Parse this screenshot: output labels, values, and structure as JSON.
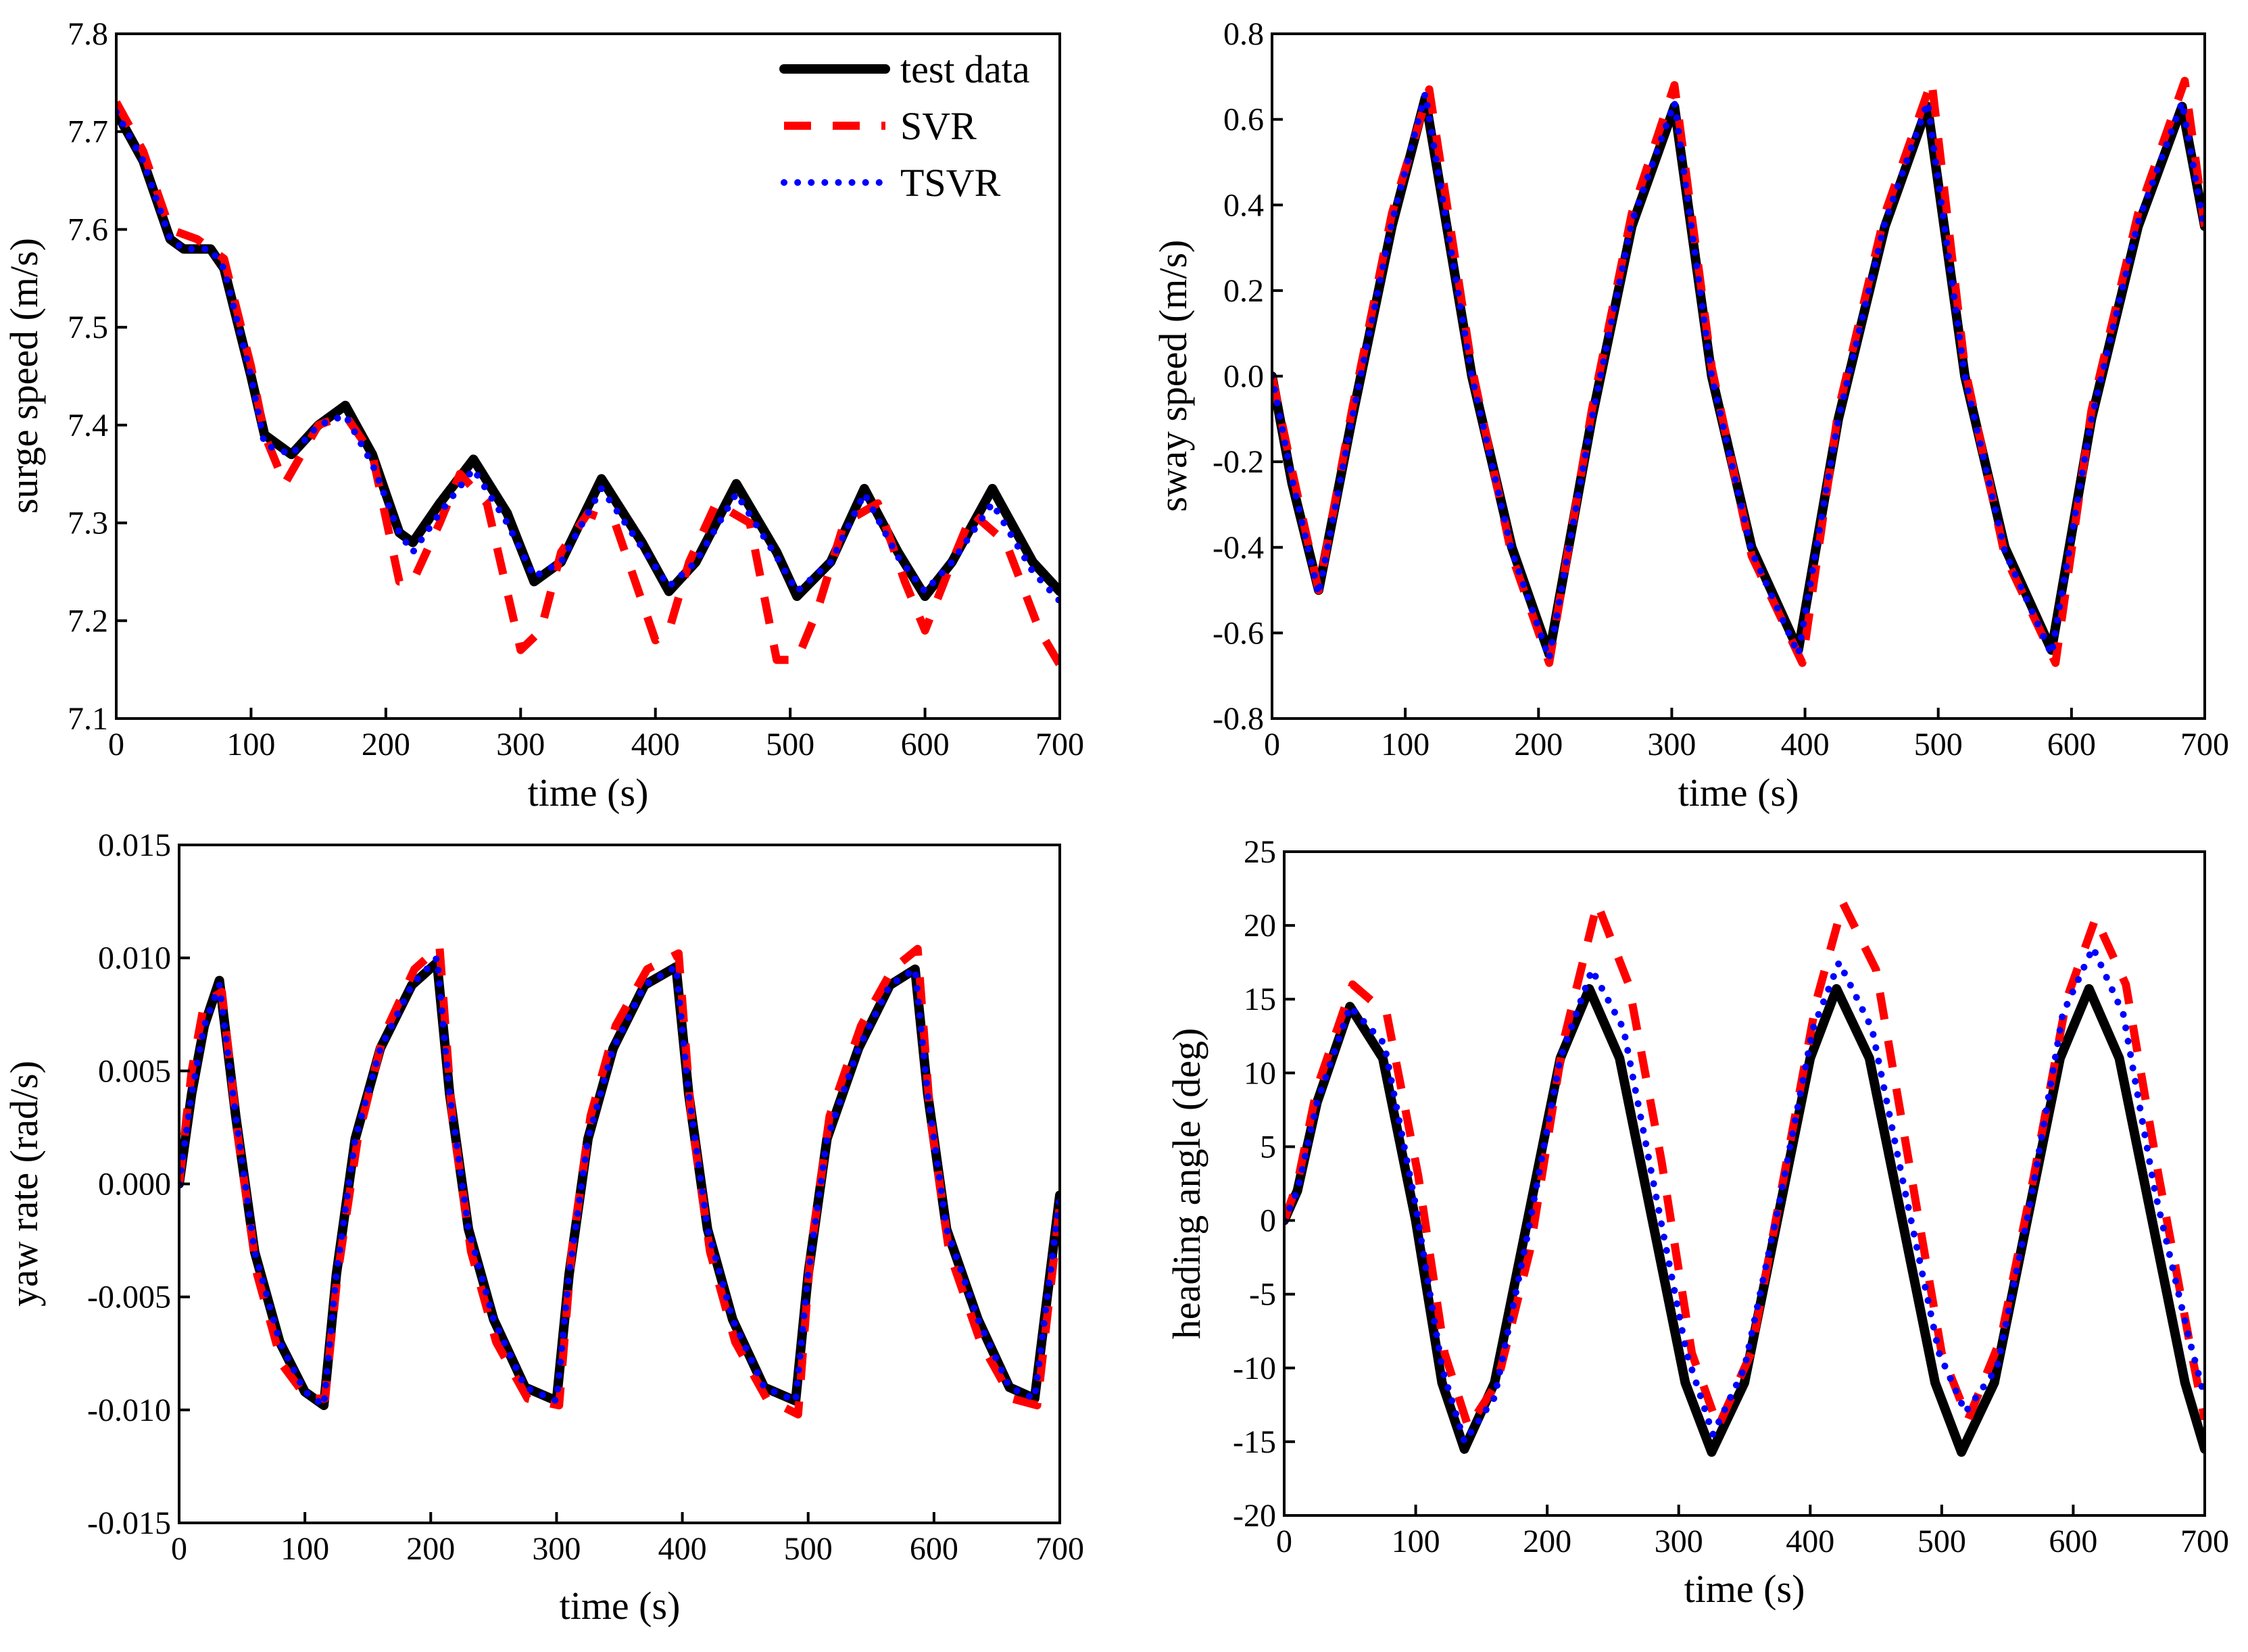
{
  "legend": {
    "entries": [
      {
        "name": "test data",
        "color": "#000000",
        "style": "solid"
      },
      {
        "name": "SVR",
        "color": "#ff0000",
        "style": "dashed"
      },
      {
        "name": "TSVR",
        "color": "#0000ff",
        "style": "dotted"
      }
    ],
    "placement": "top-right of first panel"
  },
  "chart_data": [
    {
      "type": "line",
      "xlabel": "time (s)",
      "ylabel": "surge speed (m/s)",
      "xlim": [
        0,
        700
      ],
      "ylim": [
        7.1,
        7.8
      ],
      "xticks": [
        "0",
        "100",
        "200",
        "300",
        "400",
        "500",
        "600",
        "700"
      ],
      "yticks": [
        "7.1",
        "7.2",
        "7.3",
        "7.4",
        "7.5",
        "7.6",
        "7.7",
        "7.8"
      ],
      "grid": false,
      "legend": true,
      "series": [
        {
          "name": "test data",
          "x": [
            0,
            20,
            40,
            50,
            70,
            80,
            100,
            110,
            130,
            150,
            170,
            190,
            210,
            220,
            240,
            265,
            290,
            310,
            330,
            360,
            390,
            410,
            430,
            460,
            490,
            505,
            530,
            555,
            580,
            600,
            620,
            650,
            680,
            700
          ],
          "y": [
            7.72,
            7.67,
            7.59,
            7.58,
            7.58,
            7.56,
            7.45,
            7.39,
            7.37,
            7.4,
            7.42,
            7.37,
            7.29,
            7.28,
            7.32,
            7.365,
            7.31,
            7.24,
            7.26,
            7.345,
            7.28,
            7.23,
            7.26,
            7.34,
            7.27,
            7.225,
            7.26,
            7.335,
            7.27,
            7.225,
            7.26,
            7.335,
            7.26,
            7.23
          ]
        },
        {
          "name": "SVR",
          "x": [
            0,
            20,
            40,
            60,
            80,
            100,
            110,
            125,
            150,
            170,
            190,
            210,
            220,
            240,
            255,
            275,
            300,
            315,
            330,
            350,
            370,
            400,
            410,
            425,
            445,
            470,
            490,
            505,
            520,
            540,
            565,
            585,
            600,
            620,
            635,
            660,
            685,
            700
          ],
          "y": [
            7.73,
            7.68,
            7.6,
            7.59,
            7.57,
            7.46,
            7.39,
            7.34,
            7.4,
            7.41,
            7.37,
            7.24,
            7.24,
            7.3,
            7.35,
            7.32,
            7.17,
            7.19,
            7.27,
            7.31,
            7.3,
            7.18,
            7.19,
            7.26,
            7.32,
            7.3,
            7.16,
            7.16,
            7.21,
            7.3,
            7.32,
            7.24,
            7.19,
            7.26,
            7.31,
            7.28,
            7.19,
            7.155
          ]
        },
        {
          "name": "TSVR",
          "x": [
            0,
            20,
            40,
            50,
            70,
            80,
            100,
            110,
            130,
            150,
            170,
            190,
            210,
            220,
            240,
            265,
            290,
            310,
            330,
            360,
            390,
            410,
            430,
            460,
            490,
            505,
            530,
            555,
            580,
            600,
            620,
            650,
            680,
            700
          ],
          "y": [
            7.72,
            7.67,
            7.59,
            7.58,
            7.58,
            7.56,
            7.45,
            7.38,
            7.37,
            7.4,
            7.41,
            7.36,
            7.29,
            7.27,
            7.31,
            7.355,
            7.3,
            7.245,
            7.26,
            7.335,
            7.275,
            7.235,
            7.26,
            7.33,
            7.265,
            7.23,
            7.26,
            7.33,
            7.265,
            7.23,
            7.26,
            7.32,
            7.25,
            7.22
          ]
        }
      ]
    },
    {
      "type": "line",
      "xlabel": "time (s)",
      "ylabel": "sway speed (m/s)",
      "xlim": [
        0,
        700
      ],
      "ylim": [
        -0.8,
        0.8
      ],
      "xticks": [
        "0",
        "100",
        "200",
        "300",
        "400",
        "500",
        "600",
        "700"
      ],
      "yticks": [
        "-0.8",
        "-0.6",
        "-0.4",
        "-0.2",
        "0.0",
        "0.2",
        "0.4",
        "0.6",
        "0.8"
      ],
      "grid": false,
      "legend": false,
      "series": [
        {
          "name": "test data",
          "x": [
            0,
            15,
            35,
            60,
            90,
            115,
            150,
            180,
            208,
            240,
            270,
            302,
            330,
            360,
            395,
            425,
            460,
            492,
            520,
            550,
            585,
            615,
            650,
            683,
            700
          ],
          "y": [
            0.0,
            -0.25,
            -0.5,
            -0.1,
            0.35,
            0.65,
            0.0,
            -0.4,
            -0.65,
            -0.1,
            0.35,
            0.63,
            0.0,
            -0.4,
            -0.64,
            -0.1,
            0.35,
            0.63,
            0.0,
            -0.4,
            -0.64,
            -0.1,
            0.35,
            0.63,
            0.35
          ]
        },
        {
          "name": "SVR",
          "x": [
            0,
            15,
            35,
            60,
            90,
            118,
            150,
            180,
            208,
            240,
            270,
            302,
            330,
            360,
            398,
            425,
            460,
            495,
            520,
            550,
            588,
            615,
            650,
            685,
            700
          ],
          "y": [
            0.0,
            -0.22,
            -0.5,
            -0.08,
            0.38,
            0.67,
            0.02,
            -0.42,
            -0.67,
            -0.08,
            0.38,
            0.68,
            0.02,
            -0.42,
            -0.67,
            -0.08,
            0.38,
            0.69,
            0.02,
            -0.42,
            -0.67,
            -0.08,
            0.38,
            0.69,
            0.35
          ]
        },
        {
          "name": "TSVR",
          "x": [
            0,
            15,
            35,
            60,
            90,
            115,
            150,
            180,
            208,
            240,
            270,
            302,
            330,
            360,
            395,
            425,
            460,
            492,
            520,
            550,
            585,
            615,
            650,
            683,
            700
          ],
          "y": [
            0.0,
            -0.24,
            -0.51,
            -0.1,
            0.36,
            0.66,
            0.0,
            -0.41,
            -0.66,
            -0.1,
            0.36,
            0.64,
            0.0,
            -0.41,
            -0.65,
            -0.1,
            0.36,
            0.64,
            0.0,
            -0.41,
            -0.65,
            -0.1,
            0.36,
            0.64,
            0.34
          ]
        }
      ]
    },
    {
      "type": "line",
      "xlabel": "time (s)",
      "ylabel": "yaw rate (rad/s)",
      "xlim": [
        0,
        700
      ],
      "ylim": [
        -0.015,
        0.015
      ],
      "xticks": [
        "0",
        "100",
        "200",
        "300",
        "400",
        "500",
        "600",
        "700"
      ],
      "yticks": [
        "-0.015",
        "-0.010",
        "-0.005",
        "0.000",
        "0.005",
        "0.010",
        "0.015"
      ],
      "grid": false,
      "legend": false,
      "series": [
        {
          "name": "test data",
          "x": [
            0,
            10,
            20,
            32,
            45,
            60,
            80,
            100,
            115,
            125,
            140,
            160,
            185,
            205,
            215,
            230,
            250,
            275,
            300,
            310,
            325,
            345,
            370,
            395,
            405,
            420,
            440,
            465,
            490,
            500,
            515,
            540,
            565,
            585,
            595,
            610,
            635,
            660,
            680,
            700
          ],
          "y": [
            0.0,
            0.004,
            0.007,
            0.009,
            0.003,
            -0.003,
            -0.007,
            -0.0092,
            -0.0098,
            -0.004,
            0.002,
            0.006,
            0.0088,
            0.0098,
            0.004,
            -0.002,
            -0.006,
            -0.009,
            -0.0096,
            -0.004,
            0.002,
            0.006,
            0.0088,
            0.0096,
            0.004,
            -0.002,
            -0.006,
            -0.009,
            -0.0096,
            -0.004,
            0.002,
            0.006,
            0.0088,
            0.0095,
            0.004,
            -0.002,
            -0.006,
            -0.009,
            -0.0095,
            -0.0005
          ]
        },
        {
          "name": "SVR",
          "x": [
            0,
            10,
            20,
            34,
            47,
            62,
            82,
            102,
            116,
            126,
            142,
            162,
            187,
            207,
            217,
            232,
            252,
            277,
            302,
            312,
            327,
            347,
            372,
            397,
            407,
            422,
            442,
            467,
            492,
            502,
            517,
            542,
            567,
            587,
            597,
            612,
            637,
            662,
            682,
            700
          ],
          "y": [
            0.0,
            0.005,
            0.008,
            0.0085,
            0.002,
            -0.004,
            -0.008,
            -0.0095,
            -0.0095,
            -0.004,
            0.002,
            0.0065,
            0.0095,
            0.0105,
            0.003,
            -0.003,
            -0.007,
            -0.0095,
            -0.0098,
            -0.003,
            0.003,
            0.007,
            0.0095,
            0.0102,
            0.003,
            -0.003,
            -0.007,
            -0.0095,
            -0.0102,
            -0.003,
            0.003,
            0.007,
            0.0095,
            0.0104,
            0.003,
            -0.003,
            -0.007,
            -0.0095,
            -0.0098,
            -0.001
          ]
        },
        {
          "name": "TSVR",
          "x": [
            0,
            10,
            20,
            32,
            45,
            60,
            80,
            100,
            115,
            125,
            140,
            160,
            185,
            205,
            215,
            230,
            250,
            275,
            300,
            310,
            325,
            345,
            370,
            395,
            405,
            420,
            440,
            465,
            490,
            500,
            515,
            540,
            565,
            585,
            595,
            610,
            635,
            660,
            680,
            700
          ],
          "y": [
            0.0,
            0.004,
            0.007,
            0.0088,
            0.003,
            -0.003,
            -0.007,
            -0.0092,
            -0.0098,
            -0.004,
            0.002,
            0.006,
            0.0088,
            0.01,
            0.004,
            -0.002,
            -0.006,
            -0.009,
            -0.0096,
            -0.004,
            0.002,
            0.006,
            0.0088,
            0.0096,
            0.004,
            -0.002,
            -0.006,
            -0.009,
            -0.0096,
            -0.004,
            0.002,
            0.006,
            0.0088,
            0.0095,
            0.004,
            -0.002,
            -0.006,
            -0.009,
            -0.0095,
            -0.0006
          ]
        }
      ]
    },
    {
      "type": "line",
      "xlabel": "time (s)",
      "ylabel": "heading angle (deg)",
      "xlim": [
        0,
        700
      ],
      "ylim": [
        -20,
        25
      ],
      "xticks": [
        "0",
        "100",
        "200",
        "300",
        "400",
        "500",
        "600",
        "700"
      ],
      "yticks": [
        "-20",
        "-15",
        "-10",
        "-5",
        "0",
        "5",
        "10",
        "15",
        "20",
        "25"
      ],
      "grid": false,
      "legend": false,
      "series": [
        {
          "name": "test data",
          "x": [
            0,
            10,
            25,
            50,
            75,
            100,
            120,
            137,
            160,
            185,
            210,
            232,
            255,
            280,
            305,
            325,
            350,
            375,
            400,
            420,
            445,
            470,
            495,
            515,
            540,
            565,
            590,
            612,
            635,
            660,
            685,
            700
          ],
          "y": [
            0,
            2,
            8,
            14.5,
            11,
            0,
            -11,
            -15.5,
            -11,
            0,
            11,
            15.7,
            11,
            0,
            -11,
            -15.7,
            -11,
            0,
            11,
            15.7,
            11,
            0,
            -11,
            -15.7,
            -11,
            0,
            11,
            15.7,
            11,
            0,
            -11,
            -15.5
          ]
        },
        {
          "name": "SVR",
          "x": [
            0,
            10,
            25,
            52,
            78,
            102,
            122,
            140,
            162,
            187,
            212,
            238,
            262,
            287,
            310,
            330,
            355,
            380,
            405,
            425,
            450,
            475,
            500,
            520,
            545,
            570,
            595,
            617,
            640,
            665,
            690,
            700
          ],
          "y": [
            0,
            2.5,
            9,
            16,
            14,
            3,
            -9,
            -14,
            -11,
            -2,
            12,
            21.5,
            16,
            4,
            -9,
            -14,
            -9,
            3,
            15,
            21.5,
            17,
            4,
            -9,
            -13.5,
            -8,
            3,
            15,
            20.5,
            16,
            3,
            -9,
            -13.5
          ]
        },
        {
          "name": "TSVR",
          "x": [
            0,
            10,
            25,
            50,
            76,
            100,
            120,
            137,
            160,
            185,
            210,
            234,
            258,
            282,
            306,
            326,
            350,
            376,
            402,
            422,
            447,
            472,
            498,
            518,
            542,
            567,
            592,
            615,
            638,
            662,
            688,
            700
          ],
          "y": [
            0,
            2,
            8,
            14.5,
            12,
            1,
            -10,
            -15,
            -12,
            -1,
            11,
            17,
            13,
            2,
            -9,
            -14.5,
            -10,
            1,
            13,
            17.5,
            13,
            2,
            -9,
            -13,
            -10,
            1,
            14,
            18.5,
            14,
            2,
            -8,
            -12
          ]
        }
      ]
    }
  ]
}
